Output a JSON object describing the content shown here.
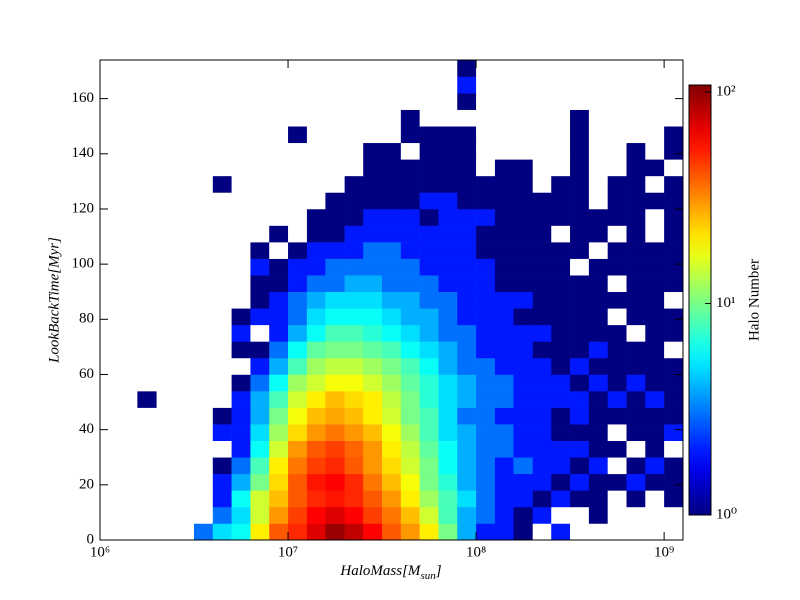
{
  "chart_data": {
    "type": "hist2d",
    "xlabel": [
      "HaloMass[M",
      "sun",
      "]"
    ],
    "ylabel": "LookBackTime[Myr]",
    "xscale": "log",
    "xlim": [
      1000000.0,
      1260000000.0
    ],
    "xticks": [
      {
        "value": 1000000.0,
        "label": "10⁶"
      },
      {
        "value": 10000000.0,
        "label": "10⁷"
      },
      {
        "value": 100000000.0,
        "label": "10⁸"
      },
      {
        "value": 1000000000.0,
        "label": "10⁹"
      }
    ],
    "ylim": [
      0,
      174
    ],
    "yticks": [
      0,
      20,
      40,
      60,
      80,
      100,
      120,
      140,
      160
    ],
    "xbins": [
      1000000.0,
      1260000.0,
      1580000.0,
      2000000.0,
      2510000.0,
      3160000.0,
      3980000.0,
      5010000.0,
      6310000.0,
      7940000.0,
      10000000.0,
      12600000.0,
      15800000.0,
      20000000.0,
      25100000.0,
      31600000.0,
      39800000.0,
      50100000.0,
      63100000.0,
      79400000.0,
      100000000.0,
      126000000.0,
      158000000.0,
      200000000.0,
      251000000.0,
      316000000.0,
      398000000.0,
      501000000.0,
      631000000.0,
      794000000.0,
      1000000000.0,
      1260000000.0
    ],
    "ybins": [
      0,
      6,
      12,
      18,
      24,
      30,
      36,
      42,
      48,
      54,
      60,
      66,
      72,
      78,
      84,
      90,
      96,
      102,
      108,
      114,
      120,
      126,
      132,
      138,
      144,
      150,
      156,
      162,
      168,
      174
    ],
    "counts": [
      [
        0,
        0,
        0,
        0,
        0,
        3,
        5,
        6,
        20,
        40,
        50,
        70,
        95,
        80,
        60,
        40,
        30,
        20,
        10,
        4,
        2,
        2,
        1,
        0,
        2,
        0,
        0,
        0,
        0,
        0,
        0
      ],
      [
        0,
        0,
        0,
        0,
        0,
        0,
        3,
        5,
        15,
        30,
        45,
        60,
        70,
        60,
        45,
        35,
        25,
        15,
        8,
        4,
        3,
        2,
        1,
        2,
        0,
        0,
        1,
        0,
        0,
        0,
        0
      ],
      [
        0,
        0,
        0,
        0,
        0,
        0,
        2,
        6,
        15,
        25,
        40,
        50,
        55,
        50,
        40,
        30,
        20,
        12,
        8,
        5,
        3,
        2,
        2,
        1,
        2,
        1,
        1,
        0,
        1,
        0,
        1
      ],
      [
        0,
        0,
        0,
        0,
        0,
        0,
        2,
        4,
        10,
        22,
        40,
        55,
        60,
        50,
        35,
        25,
        18,
        10,
        7,
        4,
        3,
        2,
        2,
        2,
        1,
        2,
        1,
        1,
        2,
        1,
        1
      ],
      [
        0,
        0,
        0,
        0,
        0,
        0,
        1,
        3,
        8,
        20,
        35,
        45,
        50,
        40,
        30,
        22,
        15,
        10,
        6,
        4,
        3,
        2,
        3,
        2,
        2,
        1,
        2,
        0,
        1,
        2,
        1
      ],
      [
        0,
        0,
        0,
        0,
        0,
        0,
        0,
        2,
        6,
        15,
        30,
        40,
        45,
        38,
        30,
        20,
        14,
        9,
        6,
        4,
        3,
        3,
        2,
        2,
        2,
        2,
        1,
        1,
        0,
        1,
        0
      ],
      [
        0,
        0,
        0,
        0,
        0,
        0,
        2,
        2,
        5,
        12,
        22,
        30,
        35,
        30,
        25,
        18,
        12,
        8,
        5,
        4,
        3,
        3,
        2,
        2,
        1,
        1,
        1,
        0,
        1,
        1,
        2
      ],
      [
        0,
        0,
        0,
        0,
        0,
        0,
        1,
        2,
        4,
        10,
        18,
        25,
        28,
        25,
        20,
        15,
        10,
        8,
        5,
        3,
        3,
        2,
        2,
        2,
        1,
        2,
        1,
        1,
        1,
        1,
        1
      ],
      [
        0,
        0,
        1,
        0,
        0,
        0,
        0,
        2,
        4,
        8,
        15,
        20,
        25,
        22,
        20,
        14,
        10,
        7,
        5,
        4,
        3,
        3,
        2,
        2,
        2,
        2,
        1,
        2,
        1,
        2,
        1
      ],
      [
        0,
        0,
        0,
        0,
        0,
        0,
        0,
        1,
        3,
        6,
        12,
        15,
        18,
        18,
        15,
        12,
        9,
        7,
        5,
        4,
        3,
        3,
        2,
        2,
        2,
        1,
        2,
        1,
        2,
        1,
        1
      ],
      [
        0,
        0,
        0,
        0,
        0,
        0,
        0,
        0,
        2,
        4,
        8,
        12,
        14,
        14,
        12,
        10,
        8,
        6,
        4,
        3,
        3,
        2,
        2,
        2,
        1,
        2,
        1,
        1,
        1,
        1,
        1
      ],
      [
        0,
        0,
        0,
        0,
        0,
        0,
        0,
        1,
        1,
        3,
        6,
        9,
        10,
        10,
        9,
        8,
        6,
        5,
        4,
        3,
        2,
        2,
        2,
        1,
        1,
        1,
        2,
        1,
        1,
        1,
        0
      ],
      [
        0,
        0,
        0,
        0,
        0,
        0,
        0,
        2,
        0,
        2,
        4,
        6,
        8,
        8,
        7,
        6,
        5,
        4,
        3,
        3,
        2,
        2,
        2,
        2,
        1,
        1,
        1,
        1,
        0,
        1,
        1
      ],
      [
        0,
        0,
        0,
        0,
        0,
        0,
        0,
        1,
        2,
        2,
        3,
        5,
        6,
        6,
        6,
        5,
        4,
        4,
        3,
        2,
        2,
        2,
        1,
        1,
        1,
        1,
        1,
        0,
        1,
        1,
        1
      ],
      [
        0,
        0,
        0,
        0,
        0,
        0,
        0,
        0,
        1,
        2,
        3,
        4,
        5,
        5,
        5,
        4,
        4,
        3,
        3,
        2,
        2,
        2,
        2,
        1,
        1,
        1,
        1,
        1,
        1,
        1,
        0
      ],
      [
        0,
        0,
        0,
        0,
        0,
        0,
        0,
        0,
        1,
        1,
        2,
        3,
        3,
        4,
        4,
        3,
        3,
        3,
        2,
        2,
        2,
        1,
        1,
        1,
        1,
        1,
        1,
        0,
        1,
        1,
        1
      ],
      [
        0,
        0,
        0,
        0,
        0,
        0,
        0,
        0,
        2,
        1,
        2,
        2,
        3,
        3,
        3,
        3,
        3,
        2,
        2,
        2,
        2,
        1,
        1,
        1,
        1,
        0,
        1,
        1,
        1,
        1,
        1
      ],
      [
        0,
        0,
        0,
        0,
        0,
        0,
        0,
        0,
        1,
        0,
        1,
        2,
        2,
        2,
        3,
        3,
        2,
        2,
        2,
        2,
        1,
        1,
        1,
        1,
        1,
        1,
        0,
        1,
        1,
        1,
        1
      ],
      [
        0,
        0,
        0,
        0,
        0,
        0,
        0,
        0,
        0,
        1,
        0,
        1,
        1,
        2,
        2,
        2,
        2,
        2,
        2,
        2,
        1,
        1,
        1,
        1,
        0,
        1,
        1,
        0,
        1,
        0,
        1
      ],
      [
        0,
        0,
        0,
        0,
        0,
        0,
        0,
        0,
        0,
        0,
        0,
        1,
        1,
        1,
        2,
        2,
        2,
        1,
        2,
        2,
        2,
        1,
        1,
        1,
        1,
        1,
        1,
        1,
        1,
        0,
        1
      ],
      [
        0,
        0,
        0,
        0,
        0,
        0,
        0,
        0,
        0,
        0,
        0,
        0,
        1,
        1,
        1,
        1,
        1,
        2,
        2,
        1,
        1,
        1,
        1,
        1,
        1,
        1,
        0,
        1,
        1,
        1,
        1
      ],
      [
        0,
        0,
        0,
        0,
        0,
        0,
        1,
        0,
        0,
        0,
        0,
        0,
        0,
        1,
        1,
        1,
        1,
        1,
        1,
        1,
        1,
        1,
        1,
        0,
        1,
        1,
        0,
        1,
        1,
        0,
        1
      ],
      [
        0,
        0,
        0,
        0,
        0,
        0,
        0,
        0,
        0,
        0,
        0,
        0,
        0,
        0,
        1,
        1,
        1,
        1,
        1,
        1,
        0,
        1,
        1,
        0,
        0,
        1,
        0,
        0,
        1,
        1,
        0
      ],
      [
        0,
        0,
        0,
        0,
        0,
        0,
        0,
        0,
        0,
        0,
        0,
        0,
        0,
        0,
        1,
        1,
        0,
        1,
        1,
        1,
        0,
        0,
        0,
        0,
        0,
        1,
        0,
        0,
        1,
        0,
        1
      ],
      [
        0,
        0,
        0,
        0,
        0,
        0,
        0,
        0,
        0,
        0,
        1,
        0,
        0,
        0,
        0,
        0,
        1,
        1,
        1,
        1,
        0,
        0,
        0,
        0,
        0,
        1,
        0,
        0,
        0,
        0,
        1
      ],
      [
        0,
        0,
        0,
        0,
        0,
        0,
        0,
        0,
        0,
        0,
        0,
        0,
        0,
        0,
        0,
        0,
        1,
        0,
        0,
        0,
        0,
        0,
        0,
        0,
        0,
        1,
        0,
        0,
        0,
        0,
        0
      ],
      [
        0,
        0,
        0,
        0,
        0,
        0,
        0,
        0,
        0,
        0,
        0,
        0,
        0,
        0,
        0,
        0,
        0,
        0,
        0,
        1,
        0,
        0,
        0,
        0,
        0,
        0,
        0,
        0,
        0,
        0,
        0
      ],
      [
        0,
        0,
        0,
        0,
        0,
        0,
        0,
        0,
        0,
        0,
        0,
        0,
        0,
        0,
        0,
        0,
        0,
        0,
        0,
        2,
        0,
        0,
        0,
        0,
        0,
        0,
        0,
        0,
        0,
        0,
        0
      ],
      [
        0,
        0,
        0,
        0,
        0,
        0,
        0,
        0,
        0,
        0,
        0,
        0,
        0,
        0,
        0,
        0,
        0,
        0,
        0,
        1,
        0,
        0,
        0,
        0,
        0,
        0,
        0,
        0,
        0,
        0,
        0
      ]
    ],
    "colormap": "jet",
    "cscale": "log",
    "clim": [
      1,
      108
    ],
    "cticks": [
      {
        "value": 1,
        "label": "10⁰"
      },
      {
        "value": 10,
        "label": "10¹"
      },
      {
        "value": 100,
        "label": "10²"
      }
    ],
    "colorbar_label": "Halo Number"
  }
}
